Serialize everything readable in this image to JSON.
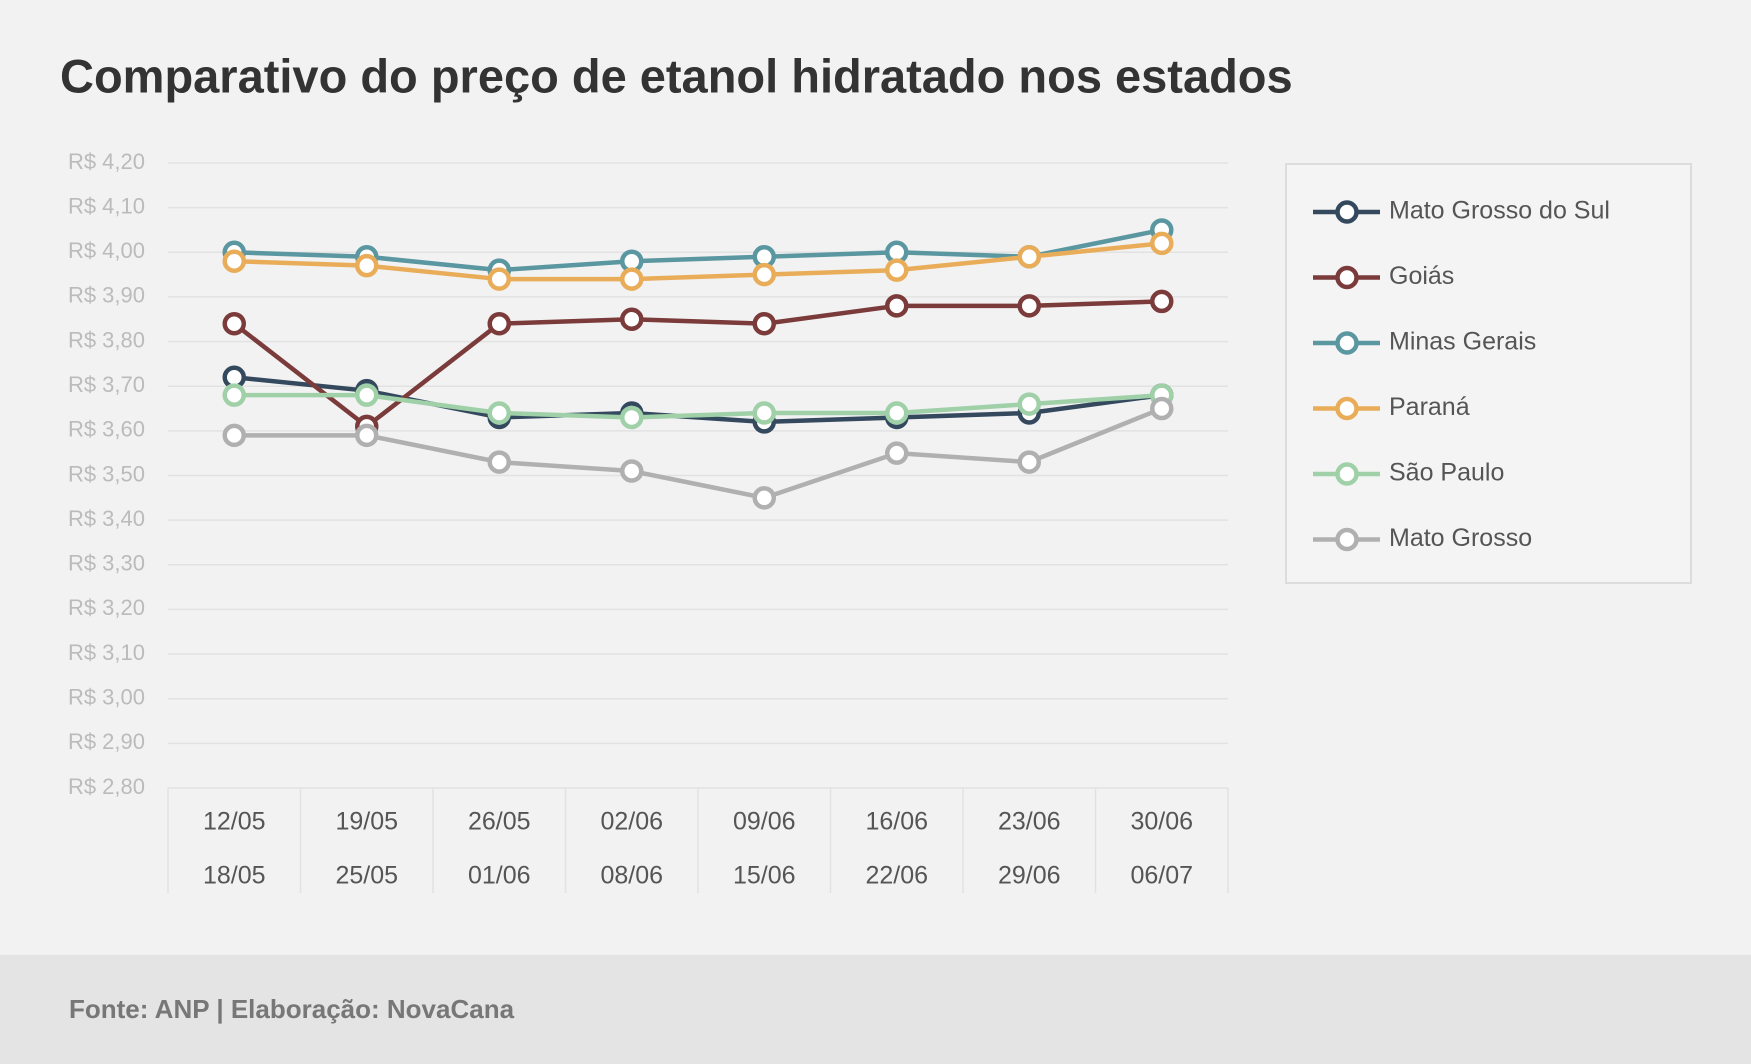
{
  "chart_data": {
    "type": "line",
    "title": "Comparativo do preço de etanol hidratado nos estados",
    "categories": [
      [
        "12/05",
        "18/05"
      ],
      [
        "19/05",
        "25/05"
      ],
      [
        "26/05",
        "01/06"
      ],
      [
        "02/06",
        "08/06"
      ],
      [
        "09/06",
        "15/06"
      ],
      [
        "16/06",
        "22/06"
      ],
      [
        "23/06",
        "29/06"
      ],
      [
        "30/06",
        "06/07"
      ]
    ],
    "series": [
      {
        "name": "Mato Grosso do Sul",
        "color": "#34495e",
        "values": [
          3.72,
          3.69,
          3.63,
          3.64,
          3.62,
          3.63,
          3.64,
          3.68
        ]
      },
      {
        "name": "Goiás",
        "color": "#7b3b3b",
        "values": [
          3.84,
          3.61,
          3.84,
          3.85,
          3.84,
          3.88,
          3.88,
          3.89
        ]
      },
      {
        "name": "Minas Gerais",
        "color": "#5b97a0",
        "values": [
          4.0,
          3.99,
          3.96,
          3.98,
          3.99,
          4.0,
          3.99,
          4.05
        ]
      },
      {
        "name": "Paraná",
        "color": "#e9ad5a",
        "values": [
          3.98,
          3.97,
          3.94,
          3.94,
          3.95,
          3.96,
          3.99,
          4.02
        ]
      },
      {
        "name": "São Paulo",
        "color": "#9fd0a8",
        "values": [
          3.68,
          3.68,
          3.64,
          3.63,
          3.64,
          3.64,
          3.66,
          3.68
        ]
      },
      {
        "name": "Mato Grosso",
        "color": "#b0b0b0",
        "values": [
          3.59,
          3.59,
          3.53,
          3.51,
          3.45,
          3.55,
          3.53,
          3.65
        ]
      }
    ],
    "ylim": [
      2.8,
      4.2
    ],
    "yticks": [
      {
        "value": 2.8,
        "label": "R$ 2,80"
      },
      {
        "value": 2.9,
        "label": "R$ 2,90"
      },
      {
        "value": 3.0,
        "label": "R$ 3,00"
      },
      {
        "value": 3.1,
        "label": "R$ 3,10"
      },
      {
        "value": 3.2,
        "label": "R$ 3,20"
      },
      {
        "value": 3.3,
        "label": "R$ 3,30"
      },
      {
        "value": 3.4,
        "label": "R$ 3,40"
      },
      {
        "value": 3.5,
        "label": "R$ 3,50"
      },
      {
        "value": 3.6,
        "label": "R$ 3,60"
      },
      {
        "value": 3.7,
        "label": "R$ 3,70"
      },
      {
        "value": 3.8,
        "label": "R$ 3,80"
      },
      {
        "value": 3.9,
        "label": "R$ 3,90"
      },
      {
        "value": 4.0,
        "label": "R$ 4,00"
      },
      {
        "value": 4.1,
        "label": "R$ 4,10"
      },
      {
        "value": 4.2,
        "label": "R$ 4,20"
      }
    ],
    "grid": true,
    "legend": "right"
  },
  "footer": {
    "source": "Fonte: ANP | Elaboração: NovaCana"
  }
}
